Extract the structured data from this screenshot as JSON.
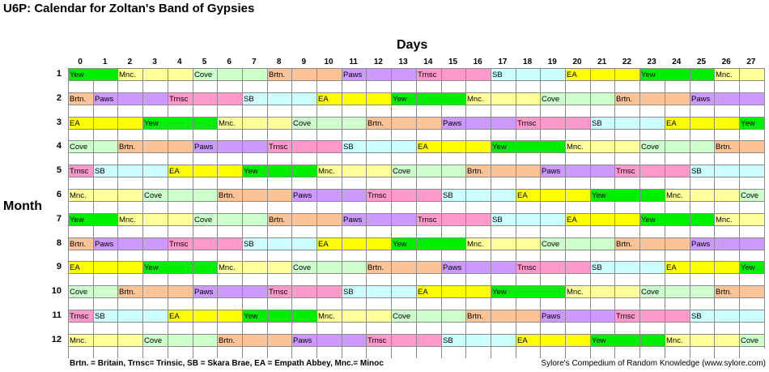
{
  "title": "U6P: Calendar for Zoltan's Band of Gypsies",
  "days_label": "Days",
  "month_label": "Month",
  "days": [
    "0",
    "1",
    "2",
    "3",
    "4",
    "5",
    "6",
    "7",
    "8",
    "9",
    "10",
    "11",
    "12",
    "13",
    "14",
    "15",
    "16",
    "17",
    "18",
    "19",
    "20",
    "21",
    "22",
    "23",
    "24",
    "25",
    "26",
    "27"
  ],
  "months": [
    "1",
    "2",
    "3",
    "4",
    "5",
    "6",
    "7",
    "8",
    "9",
    "10",
    "11",
    "12"
  ],
  "colors": {
    "yew": "#00ee00",
    "mnc": "#ffff99",
    "cove": "#ccffcc",
    "brtn": "#fcc396",
    "paws": "#cc99ff",
    "trnsc": "#ff99cc",
    "sb": "#ccffff",
    "ea": "#ffff00"
  },
  "cycle": [
    {
      "key": "yew",
      "label": "Yew"
    },
    {
      "key": "mnc",
      "label": "Mnc."
    },
    {
      "key": "cove",
      "label": "Cove"
    },
    {
      "key": "brtn",
      "label": "Brtn."
    },
    {
      "key": "paws",
      "label": "Paws"
    },
    {
      "key": "trnsc",
      "label": "Trnsc"
    },
    {
      "key": "sb",
      "label": "SB"
    },
    {
      "key": "ea",
      "label": "EA"
    }
  ],
  "segment_days": 3,
  "month_start_offset": [
    1,
    11,
    21,
    7,
    17,
    3,
    1,
    11,
    21,
    7,
    17,
    3
  ],
  "legend": "Brtn. = Britain, Trnsc= Trinsic, SB = Skara Brae, EA = Empath Abbey, Mnc.= Minoc",
  "credit": "Sylore's Compedium of Random Knowledge (www.sylore.com)"
}
